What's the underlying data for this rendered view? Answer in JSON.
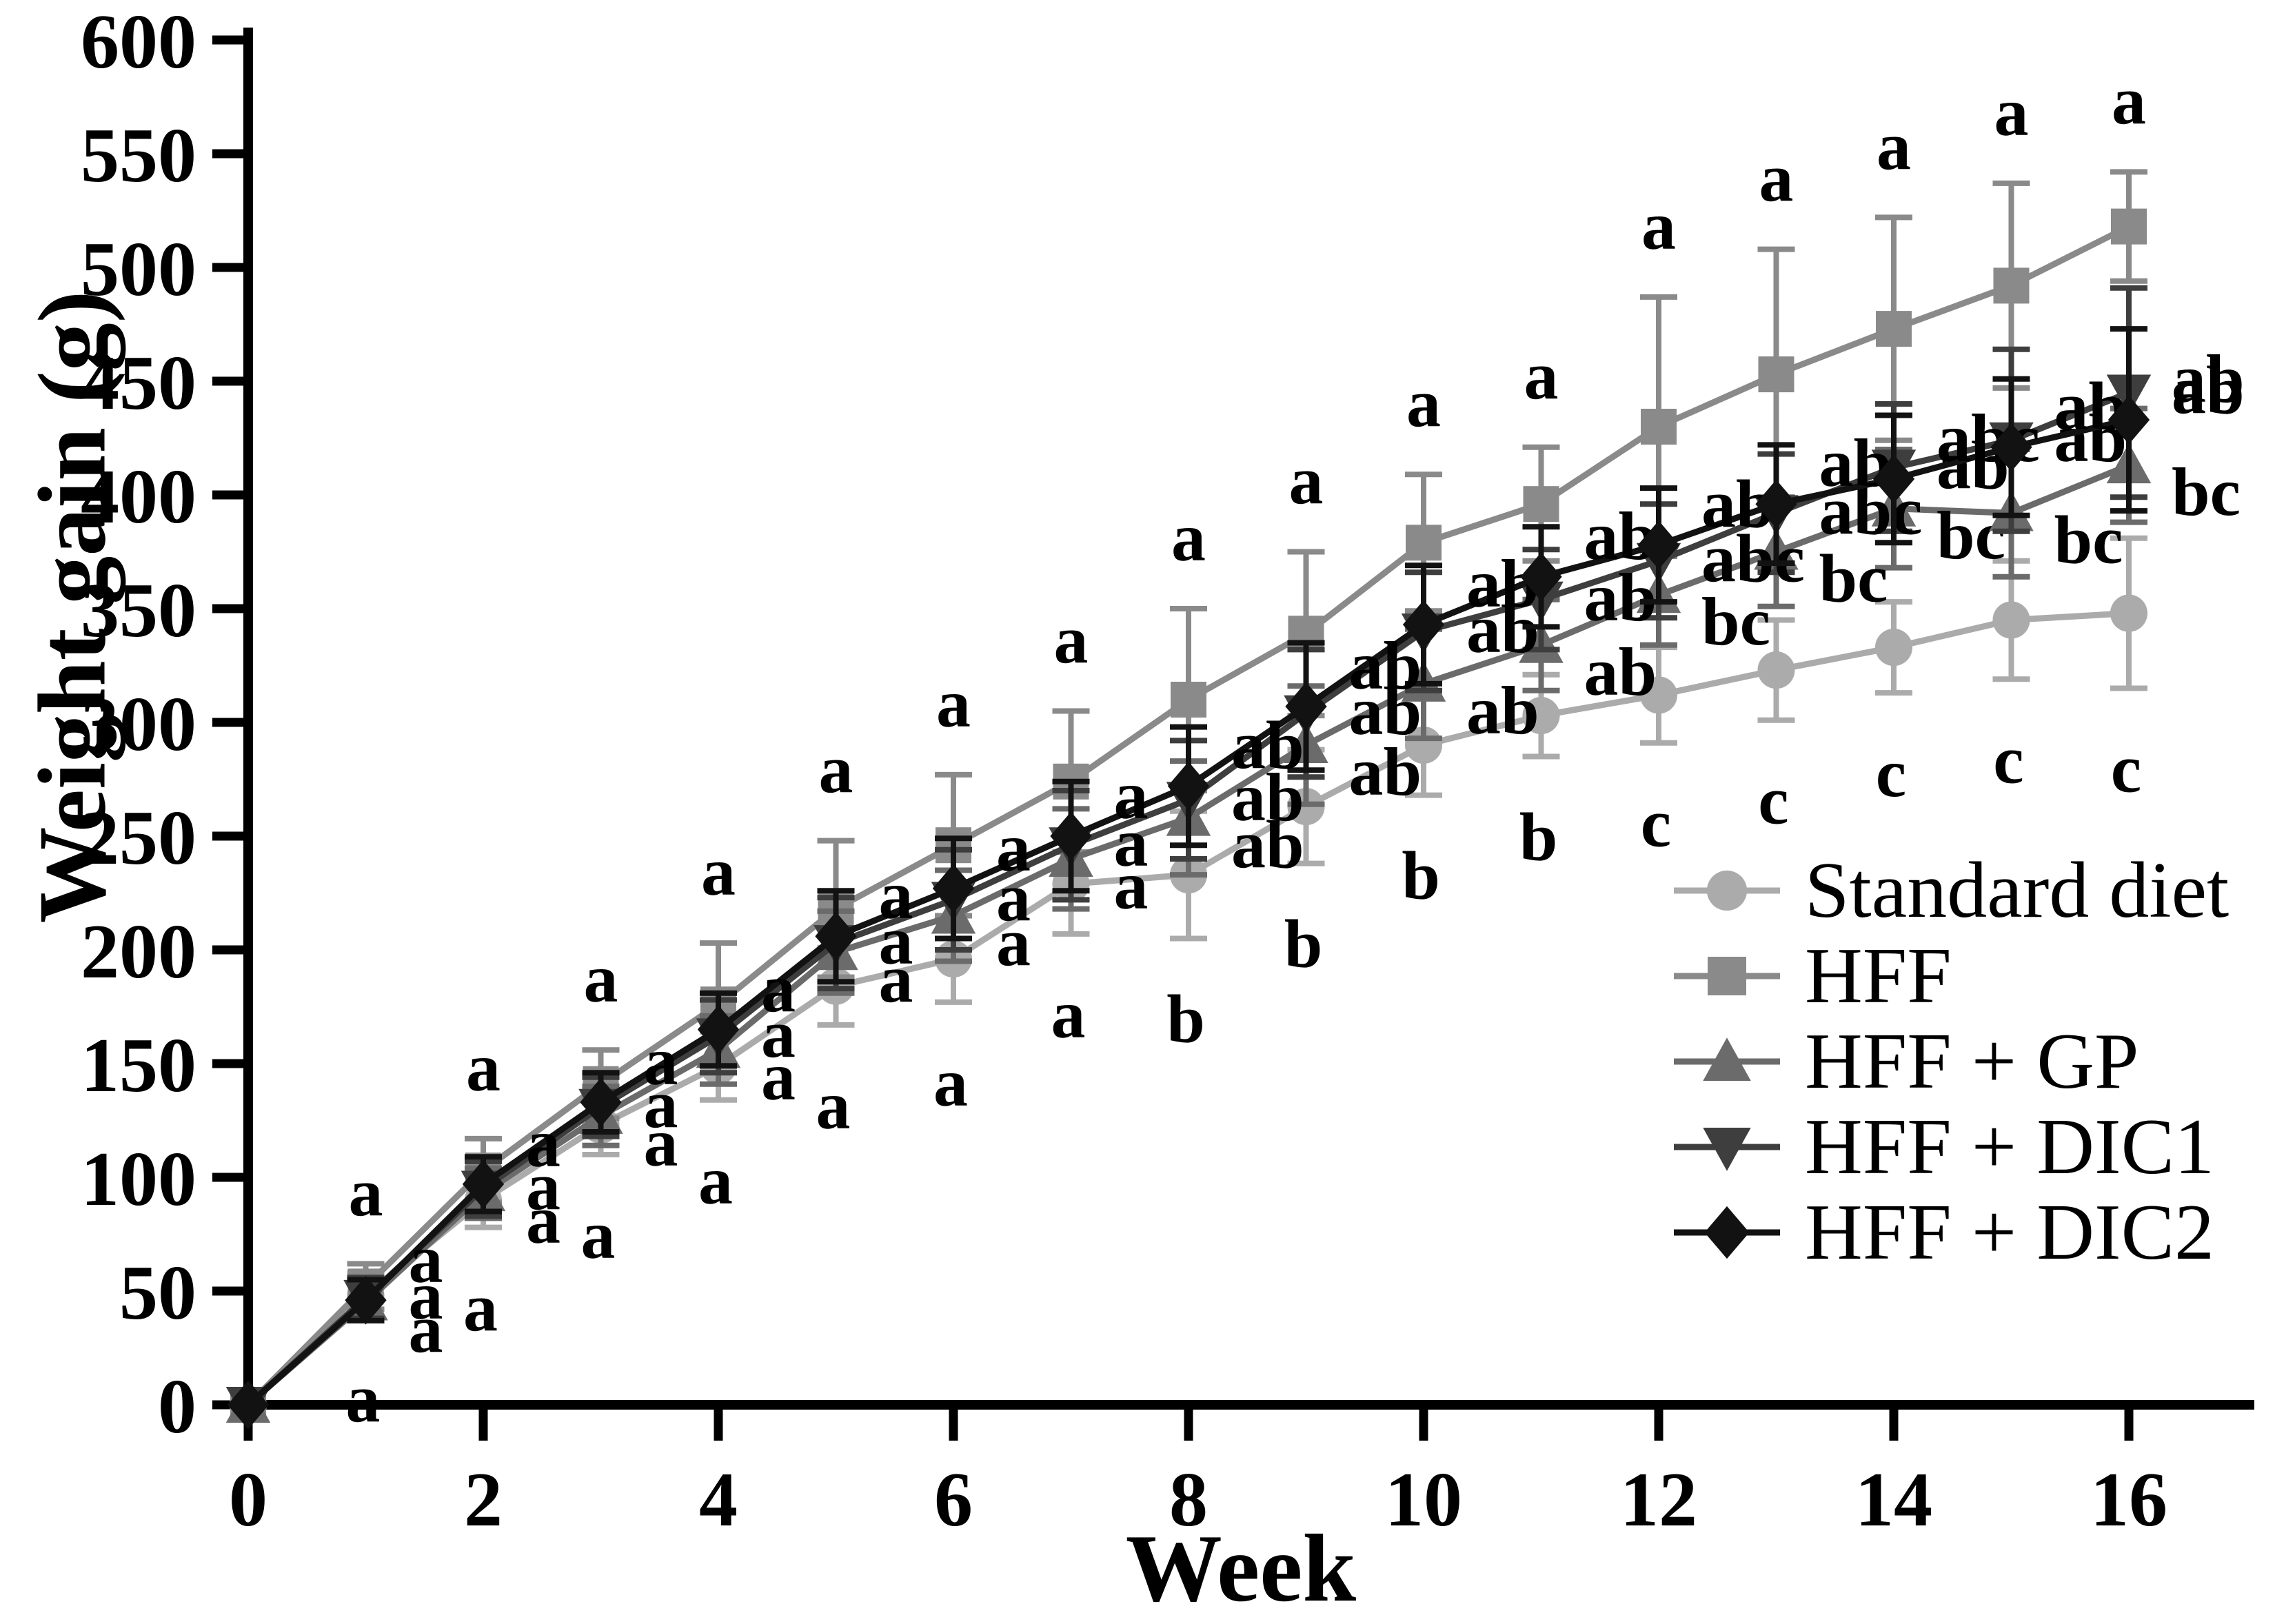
{
  "figure": {
    "x_axis_title": "Week",
    "y_axis_title": "Weight gain (g)"
  },
  "axes": {
    "y_ticks": [
      0,
      50,
      100,
      150,
      200,
      250,
      300,
      350,
      400,
      450,
      500,
      550,
      600
    ],
    "x_ticks": [
      0,
      2,
      4,
      6,
      8,
      10,
      12,
      14,
      16
    ],
    "x_range": [
      0,
      16
    ],
    "y_range": [
      0,
      600
    ],
    "grid": "off",
    "axis_color": "#000000"
  },
  "chart_data": {
    "type": "line",
    "title": "",
    "xlabel": "Week",
    "ylabel": "Weight gain (g)",
    "xlim": [
      0,
      16
    ],
    "ylim": [
      0,
      600
    ],
    "legend_position": "inside-right",
    "x": [
      0,
      1,
      2,
      3,
      4,
      5,
      6,
      7,
      8,
      9,
      10,
      11,
      12,
      13,
      14,
      15,
      16
    ],
    "series": [
      {
        "name": "Standard diet",
        "marker": "circle",
        "color": "#ABABAB",
        "values": [
          0,
          48,
          90,
          123,
          149,
          184,
          196,
          229,
          233,
          263,
          290,
          303,
          312,
          323,
          333,
          345,
          348
        ],
        "errors": [
          0,
          10,
          12,
          13,
          15,
          17,
          19,
          22,
          28,
          25,
          22,
          18,
          21,
          22,
          20,
          26,
          33
        ],
        "letters": [
          "",
          "a",
          "a",
          "a",
          "a",
          "a",
          "a",
          "a",
          "b",
          "b",
          "b",
          "b",
          "c",
          "c",
          "c",
          "c",
          "c"
        ]
      },
      {
        "name": "HFF",
        "marker": "square",
        "color": "#8A8A8A",
        "values": [
          0,
          52,
          103,
          141,
          176,
          218,
          246,
          274,
          310,
          339,
          379,
          396,
          430,
          453,
          473,
          492,
          518
        ],
        "errors": [
          0,
          10,
          14,
          15,
          27,
          30,
          31,
          31,
          40,
          36,
          30,
          25,
          57,
          55,
          49,
          45,
          24
        ],
        "letters": [
          "",
          "a",
          "a",
          "a",
          "a",
          "a",
          "a",
          "a",
          "a",
          "a",
          "a",
          "a",
          "a",
          "a",
          "a",
          "a",
          "a"
        ]
      },
      {
        "name": "HFF + GP",
        "marker": "triangle-up",
        "color": "#6B6B6B",
        "values": [
          0,
          45,
          93,
          127,
          156,
          199,
          215,
          240,
          258,
          290,
          317,
          334,
          356,
          375,
          394,
          392,
          413
        ],
        "errors": [
          0,
          8,
          11,
          13,
          15,
          18,
          20,
          22,
          25,
          26,
          24,
          20,
          22,
          24,
          26,
          28,
          25
        ],
        "letters": [
          "",
          "a",
          "a",
          "a",
          "a",
          "a",
          "a",
          "a",
          "ab",
          "ab",
          "ab",
          "ab",
          "bc",
          "bc",
          "bc",
          "bc",
          "bc"
        ]
      },
      {
        "name": "HFF + DIC1",
        "marker": "triangle-down",
        "color": "#3E3E3E",
        "values": [
          0,
          47,
          95,
          131,
          162,
          203,
          222,
          246,
          266,
          304,
          340,
          354,
          371,
          392,
          412,
          424,
          445
        ],
        "errors": [
          0,
          9,
          12,
          13,
          16,
          20,
          22,
          24,
          26,
          28,
          26,
          22,
          25,
          26,
          28,
          40,
          46
        ],
        "letters": [
          "",
          "a",
          "a",
          "a",
          "a",
          "a",
          "a",
          "a",
          "ab",
          "ab",
          "ab",
          "ab",
          "abc",
          "abc",
          "ab",
          "ab",
          "ab"
        ]
      },
      {
        "name": "HFF + DIC2",
        "marker": "diamond",
        "color": "#121212",
        "values": [
          0,
          46,
          97,
          133,
          165,
          206,
          227,
          250,
          272,
          307,
          343,
          364,
          378,
          396,
          407,
          421,
          433
        ],
        "errors": [
          0,
          9,
          12,
          13,
          16,
          20,
          22,
          24,
          26,
          28,
          26,
          22,
          25,
          26,
          28,
          30,
          40
        ],
        "letters": [
          "",
          "a",
          "a",
          "a",
          "a",
          "a",
          "a",
          "a",
          "ab",
          "ab",
          "ab",
          "ab",
          "ab",
          "ab",
          "abc",
          "ab",
          "ab"
        ]
      }
    ]
  }
}
